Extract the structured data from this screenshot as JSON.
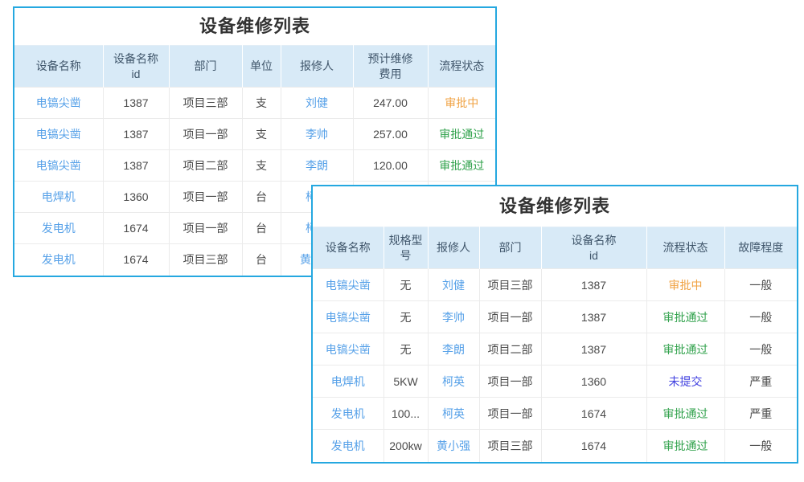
{
  "colors": {
    "card_border": "#25a8e0",
    "header_background": "#d8eaf7",
    "header_text": "#40566b",
    "link_text": "#55a0e8",
    "body_text": "#4a4a4a",
    "title_text": "#333333"
  },
  "status_colors": {
    "审批中": "#f0a242",
    "审批通过": "#31a24c",
    "未提交": "#4242e0"
  },
  "table1": {
    "title": "设备维修列表",
    "columns": [
      {
        "label": "设备名称",
        "kind": "link"
      },
      {
        "label": "设备名称\nid",
        "kind": "text"
      },
      {
        "label": "部门",
        "kind": "text"
      },
      {
        "label": "单位",
        "kind": "text"
      },
      {
        "label": "报修人",
        "kind": "link"
      },
      {
        "label": "预计维修\n费用",
        "kind": "text"
      },
      {
        "label": "流程状态",
        "kind": "status"
      }
    ],
    "rows": [
      [
        "电镐尖凿",
        "1387",
        "项目三部",
        "支",
        "刘健",
        "247.00",
        "审批中"
      ],
      [
        "电镐尖凿",
        "1387",
        "项目一部",
        "支",
        "李帅",
        "257.00",
        "审批通过"
      ],
      [
        "电镐尖凿",
        "1387",
        "项目二部",
        "支",
        "李朗",
        "120.00",
        "审批通过"
      ],
      [
        "电焊机",
        "1360",
        "项目一部",
        "台",
        "柯英",
        "",
        ""
      ],
      [
        "发电机",
        "1674",
        "项目一部",
        "台",
        "柯英",
        "",
        ""
      ],
      [
        "发电机",
        "1674",
        "项目三部",
        "台",
        "黄小强",
        "",
        ""
      ]
    ]
  },
  "table2": {
    "title": "设备维修列表",
    "columns": [
      {
        "label": "设备名称",
        "kind": "link"
      },
      {
        "label": "规格型\n号",
        "kind": "text"
      },
      {
        "label": "报修人",
        "kind": "link"
      },
      {
        "label": "部门",
        "kind": "text"
      },
      {
        "label": "设备名称\nid",
        "kind": "text"
      },
      {
        "label": "流程状态",
        "kind": "status"
      },
      {
        "label": "故障程度",
        "kind": "text"
      }
    ],
    "rows": [
      [
        "电镐尖凿",
        "无",
        "刘健",
        "项目三部",
        "1387",
        "审批中",
        "一般"
      ],
      [
        "电镐尖凿",
        "无",
        "李帅",
        "项目一部",
        "1387",
        "审批通过",
        "一般"
      ],
      [
        "电镐尖凿",
        "无",
        "李朗",
        "项目二部",
        "1387",
        "审批通过",
        "一般"
      ],
      [
        "电焊机",
        "5KW",
        "柯英",
        "项目一部",
        "1360",
        "未提交",
        "严重"
      ],
      [
        "发电机",
        "100...",
        "柯英",
        "项目一部",
        "1674",
        "审批通过",
        "严重"
      ],
      [
        "发电机",
        "200kw",
        "黄小强",
        "项目三部",
        "1674",
        "审批通过",
        "一般"
      ]
    ]
  }
}
